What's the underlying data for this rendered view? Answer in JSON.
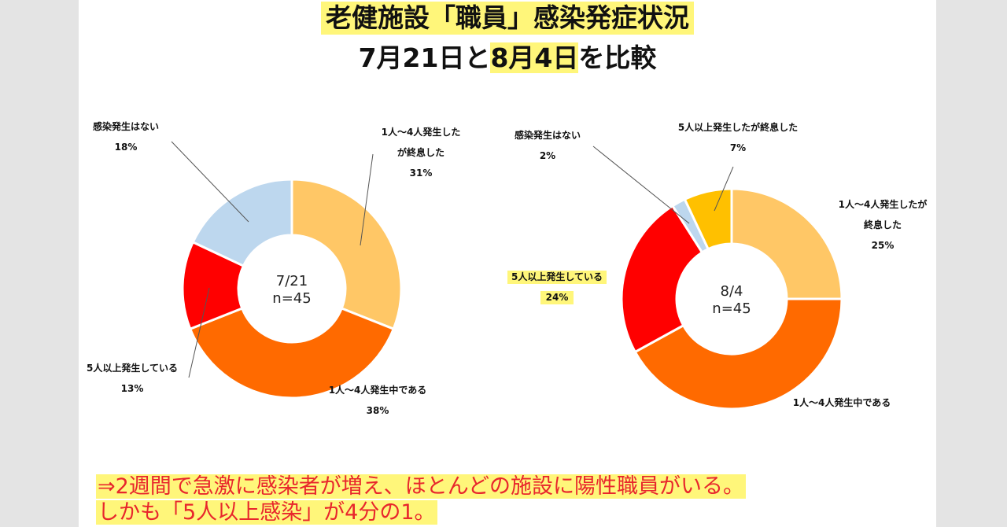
{
  "title": "老健施設「職員」感染発症状況",
  "subtitle": {
    "before": "7月21日と",
    "highlight": "8月4日",
    "after": "を比較"
  },
  "conclusion": {
    "line1": "⇒2週間で急激に感染者が増え、ほとんどの施設に陽性職員がいる。",
    "line2": "しかも「5人以上感染」が4分の1。"
  },
  "colors": {
    "highlight": "#fff67a",
    "conclusion_text": "#e8262c"
  },
  "chart_data": [
    {
      "type": "pie",
      "center_label": [
        "7/21",
        "n=45"
      ],
      "slices": [
        {
          "label": [
            "1人〜4人発生した",
            "が終息した"
          ],
          "value": 31,
          "value_label": "31%",
          "color": "#ffc766"
        },
        {
          "label": [
            "1人〜4人発生中である"
          ],
          "value": 38,
          "value_label": "38%",
          "color": "#ff6a00"
        },
        {
          "label": [
            "5人以上発生している"
          ],
          "value": 13,
          "value_label": "13%",
          "color": "#ff0000"
        },
        {
          "label": [
            "感染発生はない"
          ],
          "value": 18,
          "value_label": "18%",
          "color": "#bdd7ee"
        }
      ]
    },
    {
      "type": "pie",
      "center_label": [
        "8/4",
        "n=45"
      ],
      "slices": [
        {
          "label": [
            "1人〜4人発生したが",
            "終息した"
          ],
          "value": 25,
          "value_label": "25%",
          "color": "#ffc766"
        },
        {
          "label": [
            "1人〜4人発生中である"
          ],
          "value": 42,
          "value_label": "",
          "color": "#ff6a00"
        },
        {
          "label": [
            "5人以上発生している"
          ],
          "value": 24,
          "value_label": "24%",
          "color": "#ff0000"
        },
        {
          "label": [
            "感染発生はない"
          ],
          "value": 2,
          "value_label": "2%",
          "color": "#bdd7ee"
        },
        {
          "label": [
            "5人以上発生したが終息した"
          ],
          "value": 7,
          "value_label": "7%",
          "color": "#ffc000"
        }
      ]
    }
  ]
}
